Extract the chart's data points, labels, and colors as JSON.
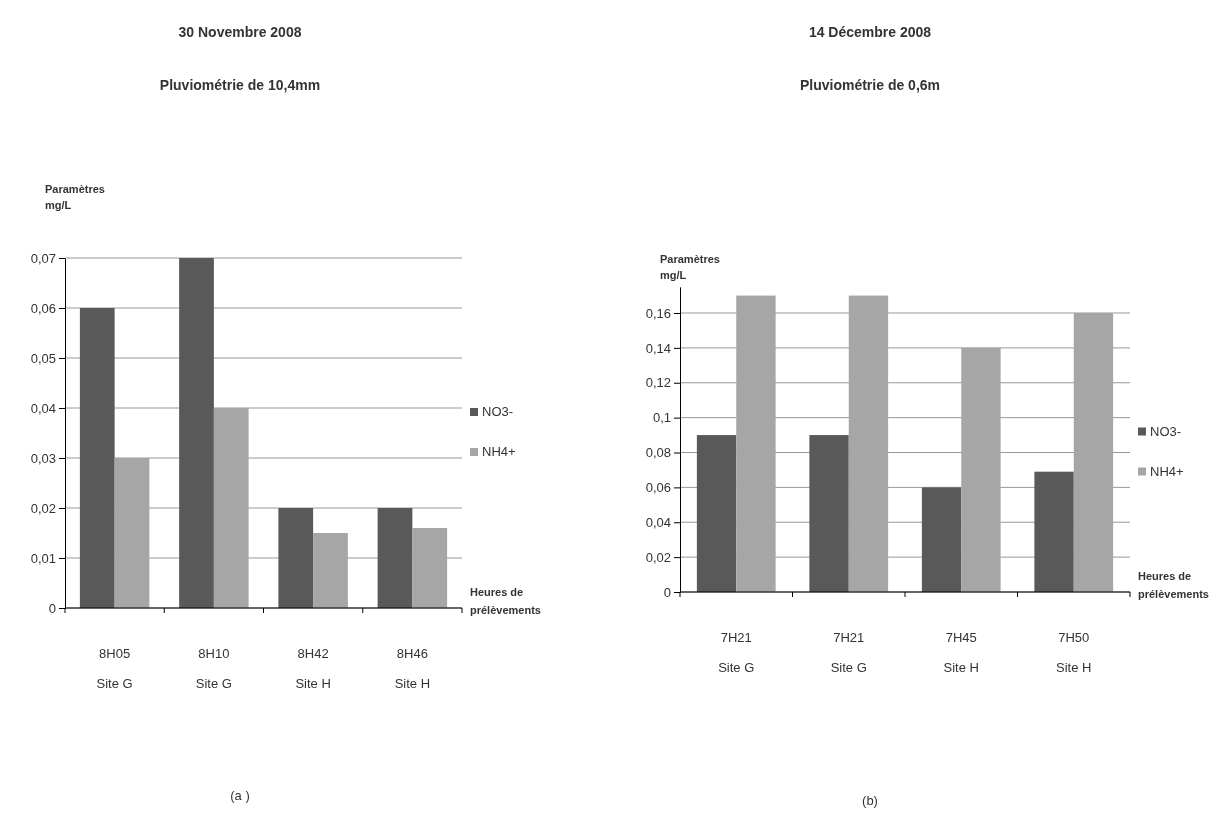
{
  "chart_data": [
    {
      "type": "bar",
      "title": "30 Novembre 2008",
      "subtitle": "Pluviométrie de 10,4mm",
      "ylabel": "Paramètres\nmg/L",
      "xlabel": "Heures de\nprélèvements",
      "annotations": [
        "(a )"
      ],
      "categories": [
        "8H05\nSite G",
        "8H10\nSite G",
        "8H42\nSite H",
        "8H46\nSite H"
      ],
      "series": [
        {
          "name": "NO3-",
          "color": "#595959",
          "values": [
            0.06,
            0.07,
            0.02,
            0.02
          ]
        },
        {
          "name": "NH4+",
          "color": "#a6a6a6",
          "values": [
            0.03,
            0.04,
            0.015,
            0.016
          ]
        }
      ],
      "ylim": [
        0,
        0.07
      ],
      "yticks": [
        0,
        {
          "value": 0.01,
          "label": "0,01"
        },
        {
          "value": 0.02,
          "label": "0,02"
        },
        {
          "value": 0.03,
          "label": "0,03"
        },
        {
          "value": 0.04,
          "label": "0,04"
        },
        {
          "value": 0.05,
          "label": "0,05"
        },
        {
          "value": 0.06,
          "label": "0,06"
        },
        {
          "value": 0.07,
          "label": "0,07"
        }
      ],
      "grid": "y",
      "legend": "right"
    },
    {
      "type": "bar",
      "title": "14 Décembre 2008",
      "subtitle": "Pluviométrie de 0,6m",
      "ylabel": "Paramètres\nmg/L",
      "xlabel": "Heures de\nprélèvements",
      "annotations": [
        "(b)"
      ],
      "categories": [
        "7H21\nSite G",
        "7H21\nSite G",
        "7H45\nSite H",
        "7H50\nSite H"
      ],
      "series": [
        {
          "name": "NO3-",
          "color": "#595959",
          "values": [
            0.09,
            0.09,
            0.06,
            0.069
          ]
        },
        {
          "name": "NH4+",
          "color": "#a6a6a6",
          "values": [
            0.17,
            0.17,
            0.14,
            0.16
          ]
        }
      ],
      "ylim": [
        0,
        0.175
      ],
      "yticks": [
        0,
        {
          "value": 0.02,
          "label": "0,02"
        },
        {
          "value": 0.04,
          "label": "0,04"
        },
        {
          "value": 0.06,
          "label": "0,06"
        },
        {
          "value": 0.08,
          "label": "0,08"
        },
        {
          "value": 0.1,
          "label": "0,1"
        },
        {
          "value": 0.12,
          "label": "0,12"
        },
        {
          "value": 0.14,
          "label": "0,14"
        },
        {
          "value": 0.16,
          "label": "0,16"
        }
      ],
      "grid": "y",
      "legend": "right"
    }
  ]
}
